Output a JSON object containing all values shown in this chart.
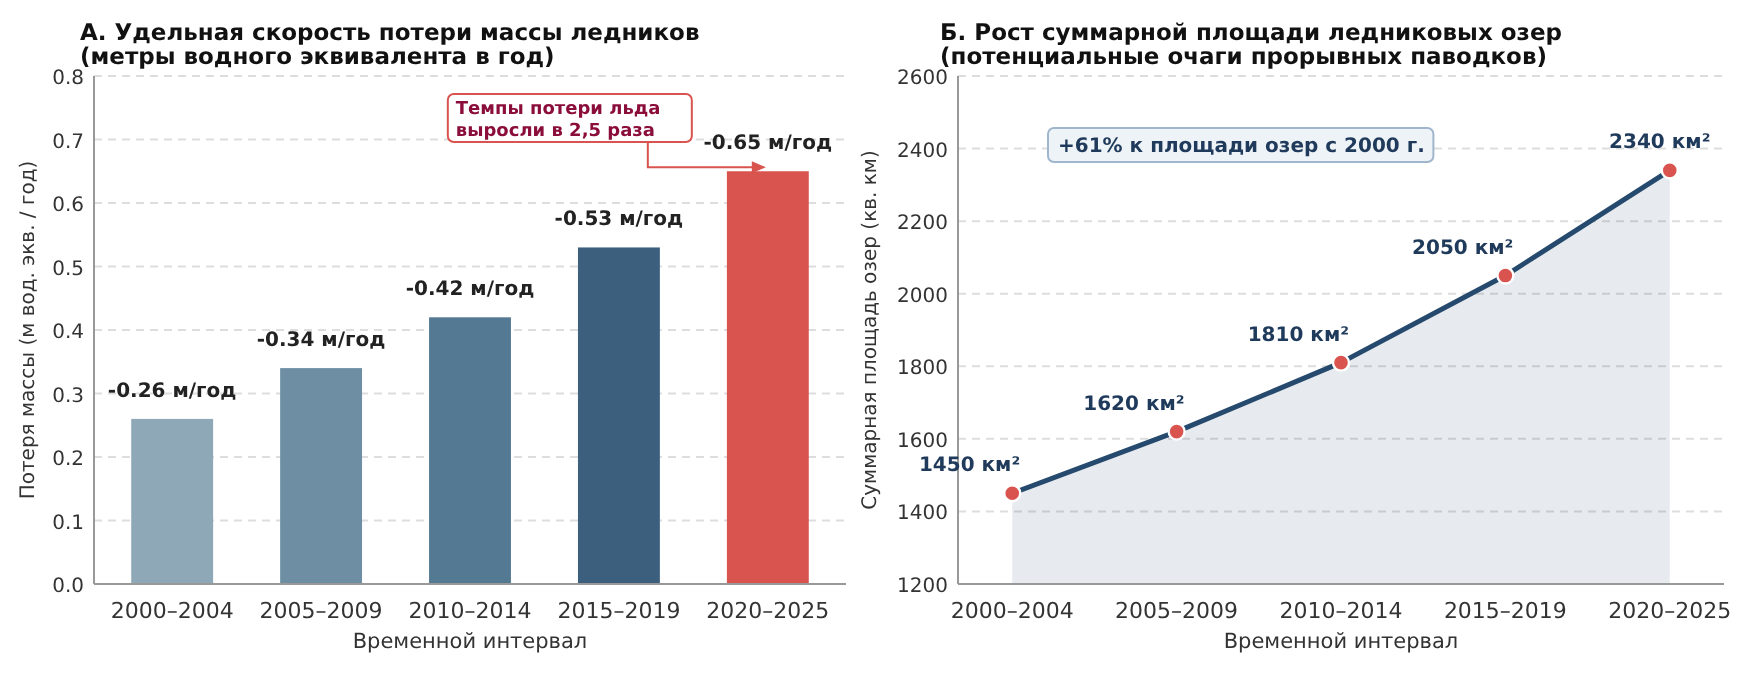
{
  "chart_data": [
    {
      "type": "bar",
      "title": "А. Удельная скорость потери массы ледников\n(метры водного эквивалента в год)",
      "xlabel": "Временной интервал",
      "ylabel": "Потеря массы (м вод. экв. / год)",
      "categories": [
        "2000–2004",
        "2005–2009",
        "2010–2014",
        "2015–2019",
        "2020–2025"
      ],
      "values": [
        0.26,
        0.34,
        0.42,
        0.53,
        0.65
      ],
      "colors": [
        "#8fa8b8",
        "#6e8fa3",
        "#547a93",
        "#3b5f7c",
        "#d9534f"
      ],
      "ylim": [
        0,
        0.8
      ],
      "yticks": [
        {
          "value": 0,
          "label": "0.0"
        },
        {
          "value": 0.1,
          "label": "0.1"
        },
        {
          "value": 0.2,
          "label": "0.2"
        },
        {
          "value": 0.3,
          "label": "0.3"
        },
        {
          "value": 0.4,
          "label": "0.4"
        },
        {
          "value": 0.5,
          "label": "0.5"
        },
        {
          "value": 0.6,
          "label": "0.6"
        },
        {
          "value": 0.7,
          "label": "0.7"
        },
        {
          "value": 0.8,
          "label": "0.8"
        }
      ],
      "grid": "y",
      "annotations": [
        {
          "text": "-0.26 м/год",
          "x": "2000–2004",
          "y": 0.26
        },
        {
          "text": "-0.34 м/год",
          "x": "2005–2009",
          "y": 0.34
        },
        {
          "text": "-0.42 м/год",
          "x": "2010–2014",
          "y": 0.42
        },
        {
          "text": "-0.53 м/год",
          "x": "2015–2019",
          "y": 0.53
        },
        {
          "text": "-0.65 м/год",
          "x": "2020–2025",
          "y": 0.65
        },
        {
          "text": "Темпы потери льда\nвыросли в 2,5 раза",
          "x": "2020–2025",
          "y": 0.65
        }
      ]
    },
    {
      "type": "area",
      "title": "Б. Рост суммарной площади ледниковых озер\n(потенциальные очаги прорывных паводков)",
      "xlabel": "Временной интервал",
      "ylabel": "Суммарная площадь озер (кв. км)",
      "categories": [
        "2000–2004",
        "2005–2009",
        "2010–2014",
        "2015–2019",
        "2020–2025"
      ],
      "series": [
        {
          "color": "#264a6e",
          "values": [
            1450,
            1620,
            1810,
            2050,
            2340
          ],
          "value_labels": [
            "1450 км²",
            "1620 км²",
            "1810 км²",
            "2050 км²",
            "2340 км²"
          ]
        }
      ],
      "marker": "circle",
      "ylim": [
        1200,
        2600
      ],
      "yticks": [
        1200,
        1400,
        1600,
        1800,
        2000,
        2200,
        2400,
        2600
      ],
      "grid": "y",
      "annotations": [
        "+61% к площади озер с 2000 г."
      ]
    }
  ]
}
